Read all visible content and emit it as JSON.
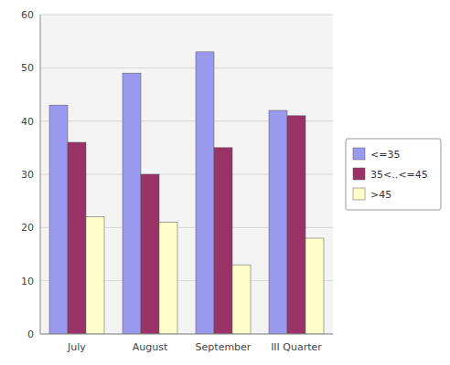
{
  "chart_data": {
    "type": "bar",
    "categories": [
      "July",
      "August",
      "September",
      "III Quarter"
    ],
    "series": [
      {
        "name": "<=35",
        "color": "#9999EE",
        "values": [
          43,
          49,
          53,
          42
        ]
      },
      {
        "name": "35<..<=45",
        "color": "#993366",
        "values": [
          36,
          30,
          35,
          41
        ]
      },
      {
        "name": ">45",
        "color": "#FFFFCC",
        "values": [
          22,
          21,
          13,
          18
        ]
      }
    ],
    "ylim": [
      0,
      60
    ],
    "yticks": [
      0,
      10,
      20,
      30,
      40,
      50,
      60
    ],
    "grid": true,
    "legend": "right"
  }
}
